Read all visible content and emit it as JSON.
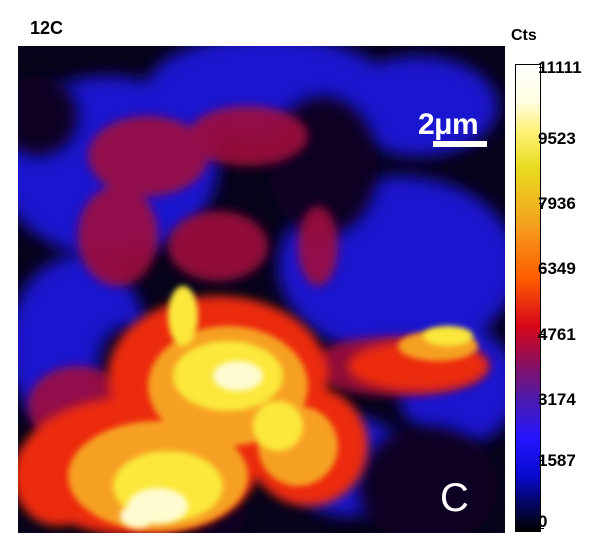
{
  "panel_title": "12C",
  "scale_bar_label": "2μm",
  "panel_letter": "C",
  "colorbar": {
    "unit": "Cts",
    "ticks": [
      "11111",
      "9523",
      "7936",
      "6349",
      "4761",
      "3174",
      "1587",
      "0"
    ]
  }
}
